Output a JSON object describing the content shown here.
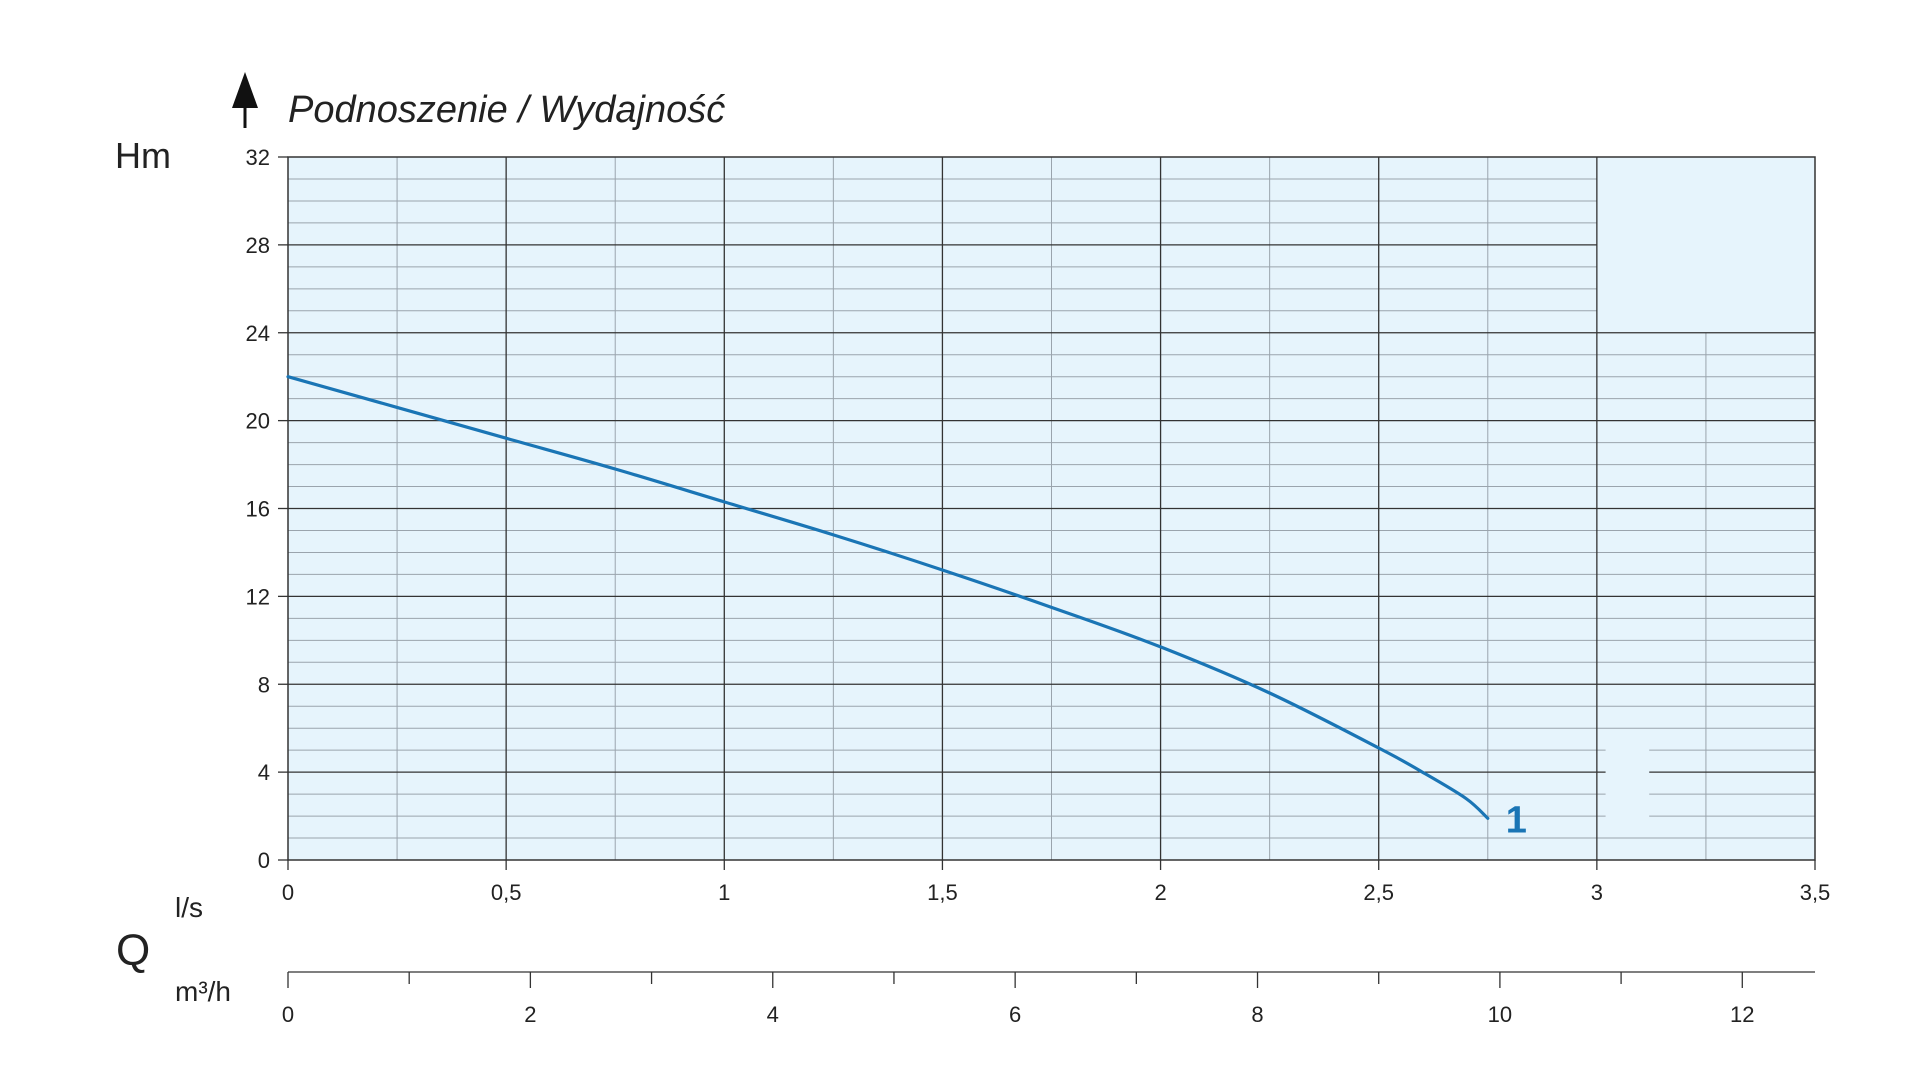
{
  "chart_data": {
    "type": "line",
    "title": "Podnoszenie / Wydajność",
    "ylabel": "Hm",
    "xlabel": "Q",
    "x_unit_primary": "l/s",
    "x_unit_secondary": "m³/h",
    "ylim": [
      0,
      32
    ],
    "xlim": [
      0,
      3.5
    ],
    "secondary_xlim": [
      0,
      12.6
    ],
    "y_ticks": [
      "0",
      "4",
      "8",
      "12",
      "16",
      "20",
      "24",
      "28",
      "32"
    ],
    "x_ticks": [
      "0",
      "0,5",
      "1",
      "1,5",
      "2",
      "2,5",
      "3",
      "3,5"
    ],
    "secondary_x_ticks": [
      "0",
      "2",
      "4",
      "6",
      "8",
      "10",
      "12"
    ],
    "grid": true,
    "colors": {
      "curve": "#1a75b5",
      "plot_background": "#e6f4fc",
      "major_grid": "#333333",
      "minor_grid": "#9aa4ad"
    },
    "series": [
      {
        "name": "1",
        "x": [
          0,
          0.25,
          0.5,
          0.75,
          1.0,
          1.25,
          1.5,
          1.75,
          2.0,
          2.25,
          2.5,
          2.6,
          2.7,
          2.75
        ],
        "y": [
          22.0,
          20.6,
          19.2,
          17.8,
          16.3,
          14.8,
          13.2,
          11.5,
          9.7,
          7.6,
          5.1,
          4.0,
          2.8,
          1.9
        ]
      }
    ]
  }
}
